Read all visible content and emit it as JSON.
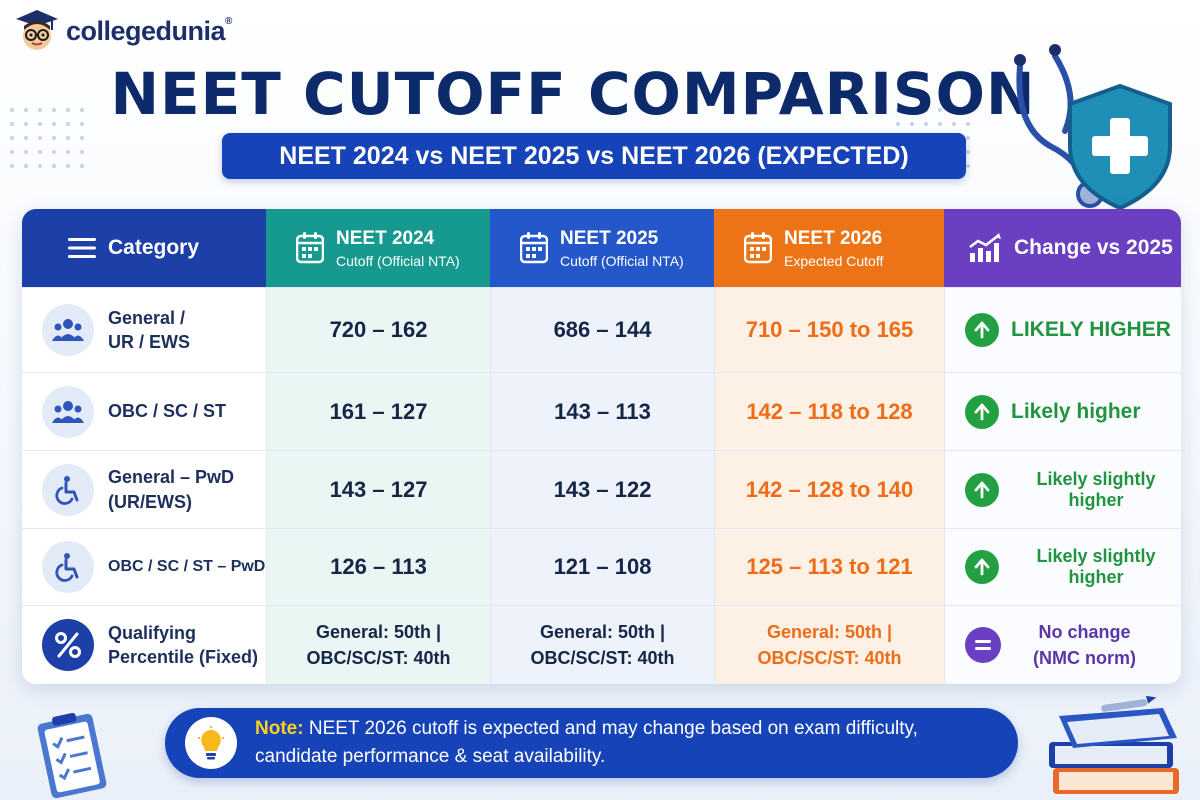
{
  "brand": {
    "name": "collegedunia",
    "mark": "®"
  },
  "title": "NEET CUTOFF COMPARISON",
  "subtitle": "NEET 2024 vs NEET 2025 vs NEET 2026 (EXPECTED)",
  "colors": {
    "navy": "#0d2a6b",
    "category_header": "#1d3fa8",
    "neet2024": "#169a8f",
    "neet2025": "#2457c9",
    "neet2026": "#ec7416",
    "change": "#6a3fc2",
    "up_green": "#23a042",
    "expected_orange": "#ef6c16"
  },
  "table": {
    "headers": {
      "category": "Category",
      "neet2024": {
        "main": "NEET 2024",
        "sub": "Cutoff (Official NTA)"
      },
      "neet2025": {
        "main": "NEET 2025",
        "sub": "Cutoff (Official NTA)"
      },
      "neet2026": {
        "main": "NEET 2026",
        "sub": "Expected Cutoff"
      },
      "change": "Change vs 2025"
    },
    "header_icons": {
      "category": "menu-icon",
      "neet2024": "calendar-icon",
      "neet2025": "calendar-icon",
      "neet2026": "calendar-icon",
      "change": "bar-chart-trend-icon"
    },
    "rows": [
      {
        "category": [
          "General /",
          "UR / EWS"
        ],
        "icon": "group-icon",
        "neet2024": "720 – 162",
        "neet2025": "686 – 144",
        "neet2026": "710 – 150 to 165",
        "change": "LIKELY HIGHER",
        "change_icon": "arrow-up-icon"
      },
      {
        "category": [
          "OBC / SC / ST"
        ],
        "icon": "group-icon",
        "neet2024": "161 – 127",
        "neet2025": "143 – 113",
        "neet2026": "142 – 118 to 128",
        "change": "Likely higher",
        "change_icon": "arrow-up-icon"
      },
      {
        "category": [
          "General – PwD",
          "(UR/EWS)"
        ],
        "icon": "wheelchair-icon",
        "neet2024": "143 – 127",
        "neet2025": "143 – 122",
        "neet2026": "142 – 128 to 140",
        "change": "Likely slightly higher",
        "change_icon": "arrow-up-icon"
      },
      {
        "category": [
          "OBC / SC / ST – PwD"
        ],
        "icon": "wheelchair-icon",
        "neet2024": "126 – 113",
        "neet2025": "121 – 108",
        "neet2026": "125 – 113 to 121",
        "change": "Likely slightly higher",
        "change_icon": "arrow-up-icon"
      },
      {
        "category": [
          "Qualifying",
          "Percentile (Fixed)"
        ],
        "icon": "percent-icon",
        "neet2024": [
          "General: 50th |",
          "OBC/SC/ST: 40th"
        ],
        "neet2025": [
          "General: 50th |",
          "OBC/SC/ST: 40th"
        ],
        "neet2026": [
          "General: 50th |",
          "OBC/SC/ST: 40th"
        ],
        "change": [
          "No change",
          "(NMC norm)"
        ],
        "change_icon": "equals-icon"
      }
    ]
  },
  "note": {
    "label": "Note:",
    "text": "NEET 2026 cutoff is expected and may change based on exam difficulty,",
    "text2": "candidate performance & seat availability.",
    "icon": "lightbulb-icon"
  }
}
